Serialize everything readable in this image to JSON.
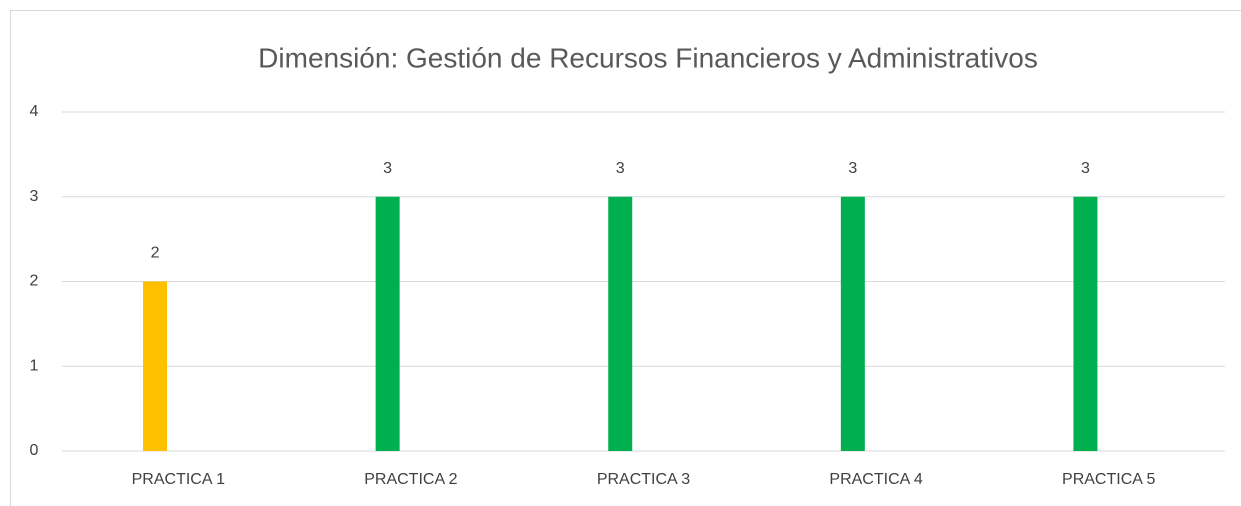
{
  "chart_data": {
    "type": "bar",
    "title": "Dimensión: Gestión de Recursos Financieros y Administrativos",
    "categories": [
      "PRACTICA 1",
      "PRACTICA 2",
      "PRACTICA 3",
      "PRACTICA 4",
      "PRACTICA 5"
    ],
    "values": [
      2,
      3,
      3,
      3,
      3
    ],
    "colors": [
      "#FFC000",
      "#00B050",
      "#00B050",
      "#00B050",
      "#00B050"
    ],
    "ylim": [
      0,
      4
    ],
    "yticks": [
      0,
      1,
      2,
      3,
      4
    ],
    "grid": true,
    "data_labels": true
  }
}
